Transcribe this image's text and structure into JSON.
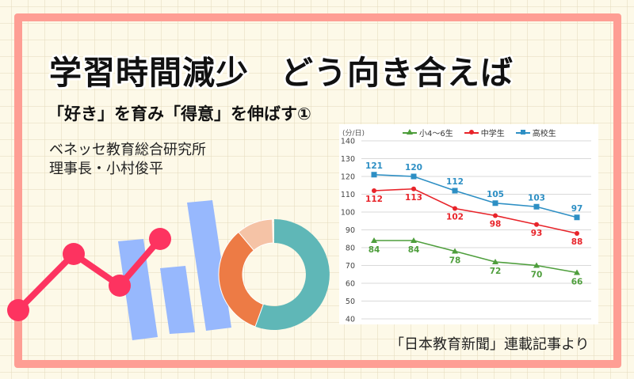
{
  "title": {
    "part1": "学習時間減少",
    "part2": "どう向き合えば"
  },
  "subtitle": "「好き」を育み「得意」を伸ばす①",
  "author": {
    "org": "ベネッセ教育総合研究所",
    "name": "理事長・小村俊平"
  },
  "source": "「日本教育新聞」連載記事より",
  "colors": {
    "frame": "#fe9e94",
    "background": "#fdf9e8",
    "elementary": "#4e9e3c",
    "junior_high": "#e8242a",
    "high_school": "#2d8fc4"
  },
  "chart_data": {
    "type": "line",
    "title": "",
    "ylabel": "(分/日)",
    "xlabel": "",
    "ylim": [
      40,
      140
    ],
    "yticks": [
      140,
      130,
      120,
      110,
      100,
      90,
      80,
      70,
      60,
      50,
      40
    ],
    "grid": true,
    "legend_position": "top",
    "x": [
      1,
      2,
      3,
      4,
      5,
      6
    ],
    "series": [
      {
        "name": "小4～6生",
        "marker": "triangle",
        "color": "#4e9e3c",
        "values": [
          84,
          84,
          78,
          72,
          70,
          66
        ]
      },
      {
        "name": "中学生",
        "marker": "circle",
        "color": "#e8242a",
        "values": [
          112,
          113,
          102,
          98,
          93,
          88
        ]
      },
      {
        "name": "高校生",
        "marker": "square",
        "color": "#2d8fc4",
        "values": [
          121,
          120,
          112,
          105,
          103,
          97
        ]
      }
    ]
  }
}
